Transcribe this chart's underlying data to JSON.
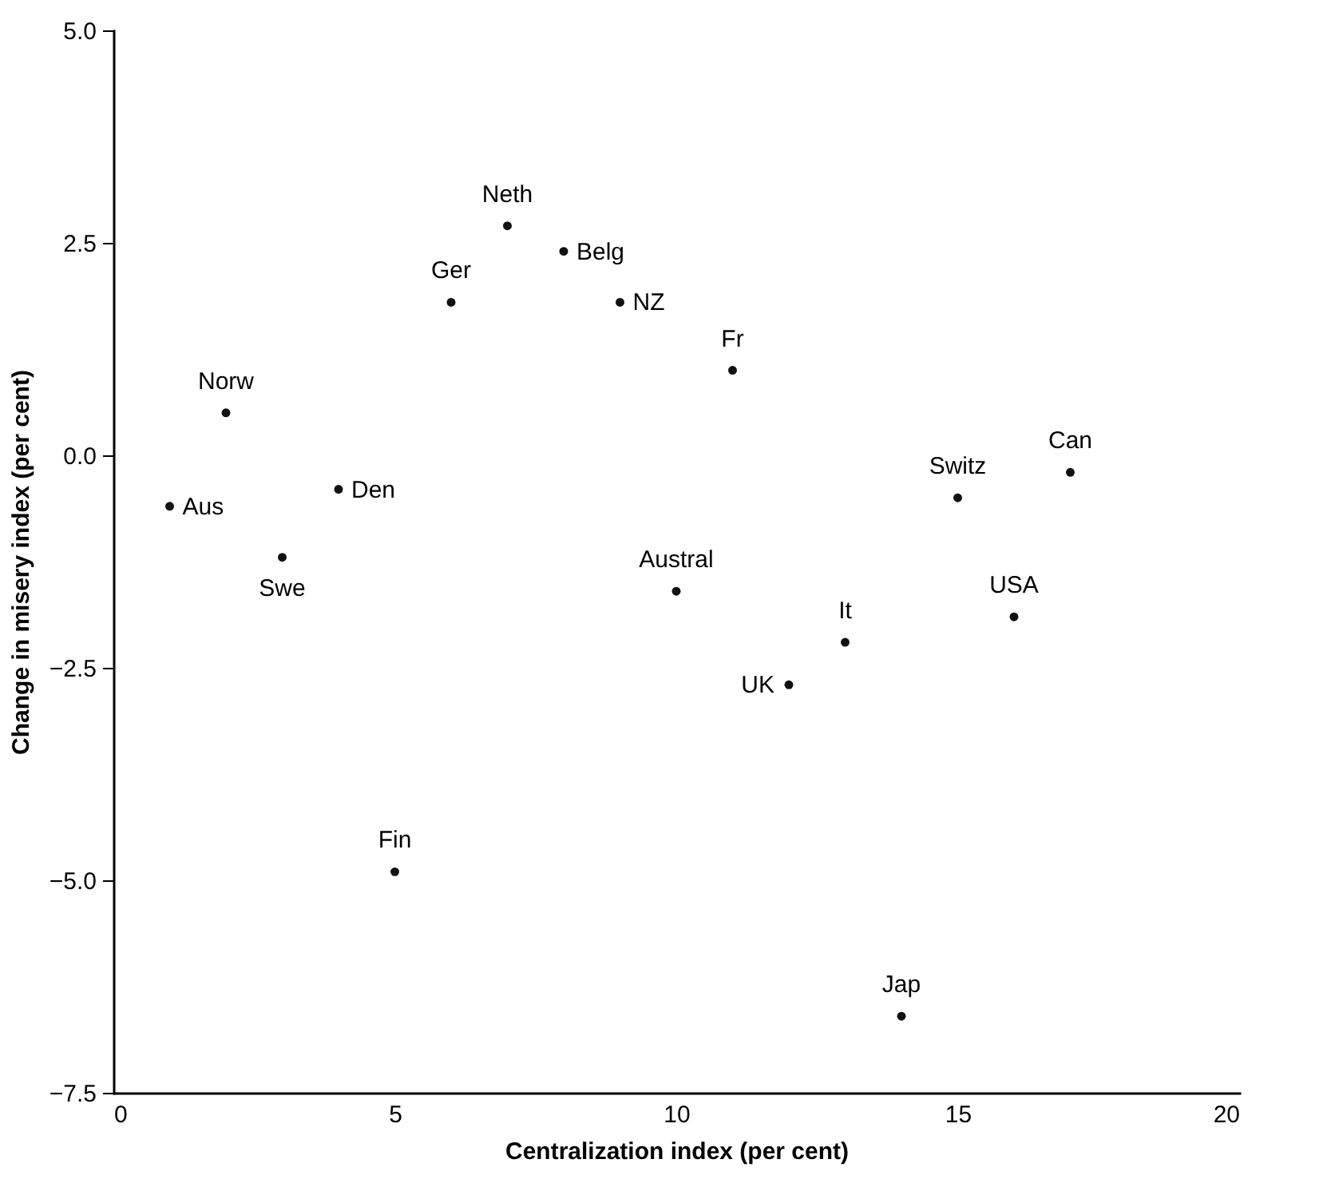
{
  "chart_data": {
    "type": "scatter",
    "xlabel": "Centralization index (per cent)",
    "ylabel": "Change in misery index (per cent)",
    "x": [
      1,
      2,
      3,
      4,
      5,
      6,
      7,
      8,
      9,
      10,
      11,
      12,
      13,
      14,
      15,
      16,
      17
    ],
    "values": [
      -0.6,
      0.5,
      -1.2,
      -0.4,
      -4.9,
      1.8,
      2.7,
      2.4,
      1.8,
      -1.6,
      1.0,
      -2.7,
      -2.2,
      -6.6,
      -0.5,
      -1.9,
      -0.2
    ],
    "color": "#111111",
    "marker": "circle",
    "grid": false,
    "xlim": [
      0,
      20
    ],
    "xticks": [
      0,
      5,
      10,
      15,
      20
    ],
    "ylim": [
      -7.5,
      5
    ],
    "yticks": [
      {
        "value": -7.5,
        "label": "−7.5"
      },
      {
        "value": -5,
        "label": "−5.0"
      },
      {
        "value": -2.5,
        "label": "−2.5"
      },
      {
        "value": 0,
        "label": "0.0"
      },
      {
        "value": 2.5,
        "label": "2.5"
      },
      {
        "value": 5,
        "label": "5.0"
      }
    ],
    "annotations": [
      {
        "text": "Aus",
        "x": 1,
        "y": -0.6
      },
      {
        "text": "Norw",
        "x": 2,
        "y": 0.5
      },
      {
        "text": "Swe",
        "x": 3,
        "y": -1.2
      },
      {
        "text": "Den",
        "x": 4,
        "y": -0.4
      },
      {
        "text": "Fin",
        "x": 5,
        "y": -4.9
      },
      {
        "text": "Ger",
        "x": 6,
        "y": 1.8
      },
      {
        "text": "Neth",
        "x": 7,
        "y": 2.7
      },
      {
        "text": "Belg",
        "x": 8,
        "y": 2.4
      },
      {
        "text": "NZ",
        "x": 9,
        "y": 1.8
      },
      {
        "text": "Austral",
        "x": 10,
        "y": -1.6
      },
      {
        "text": "Fr",
        "x": 11,
        "y": 1.0
      },
      {
        "text": "UK",
        "x": 12,
        "y": -2.7
      },
      {
        "text": "It",
        "x": 13,
        "y": -2.2
      },
      {
        "text": "Jap",
        "x": 14,
        "y": -6.6
      },
      {
        "text": "Switz",
        "x": 15,
        "y": -0.5
      },
      {
        "text": "USA",
        "x": 16,
        "y": -1.9
      },
      {
        "text": "Can",
        "x": 17,
        "y": -0.2
      }
    ]
  }
}
